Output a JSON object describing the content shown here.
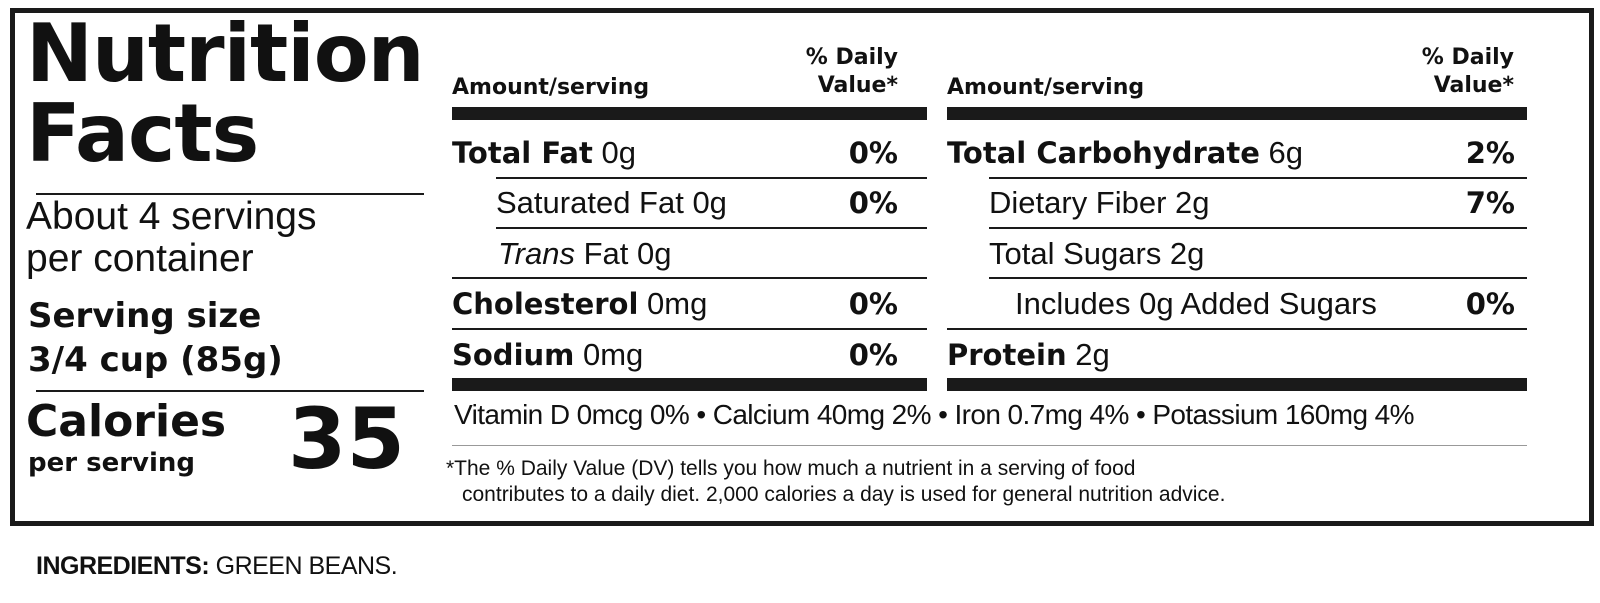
{
  "title_line1": "Nutrition",
  "title_line2": "Facts",
  "servings_line1": "About 4 servings",
  "servings_line2": "per container",
  "serving_size_label": "Serving size",
  "serving_size_value": "3/4 cup (85g)",
  "calories_label": "Calories",
  "calories_sub": "per serving",
  "calories_value": "35",
  "header": {
    "amount": "Amount/serving",
    "dv_line1": "% Daily",
    "dv_line2": "Value*"
  },
  "left_rows": [
    {
      "bold": "Total Fat",
      "italic": "",
      "text": " 0g",
      "dv": "0%"
    },
    {
      "bold": "",
      "italic": "",
      "text": "Saturated Fat 0g",
      "dv": "0%"
    },
    {
      "bold": "",
      "italic": "Trans",
      "text": " Fat 0g",
      "dv": ""
    },
    {
      "bold": "Cholesterol",
      "italic": "",
      "text": " 0mg",
      "dv": "0%"
    },
    {
      "bold": "Sodium",
      "italic": "",
      "text": " 0mg",
      "dv": "0%"
    }
  ],
  "right_rows": [
    {
      "bold": "Total Carbohydrate",
      "text": " 6g",
      "dv": "2%"
    },
    {
      "bold": "",
      "text": "Dietary Fiber 2g",
      "dv": "7%"
    },
    {
      "bold": "",
      "text": "Total Sugars 2g",
      "dv": ""
    },
    {
      "bold": "",
      "text": "Includes 0g Added Sugars",
      "dv": "0%"
    },
    {
      "bold": "Protein",
      "text": " 2g",
      "dv": ""
    }
  ],
  "vitamins": "Vitamin D 0mcg 0%  •  Calcium 40mg 2%  •  Iron 0.7mg 4%  •  Potassium 160mg 4%",
  "footnote_line1": "*The % Daily Value (DV) tells you how much a nutrient in a serving of food",
  "footnote_line2": "contributes to a daily diet. 2,000 calories a day is used for general nutrition advice.",
  "ingredients_label": "INGREDIENTS:",
  "ingredients_text": " GREEN BEANS."
}
